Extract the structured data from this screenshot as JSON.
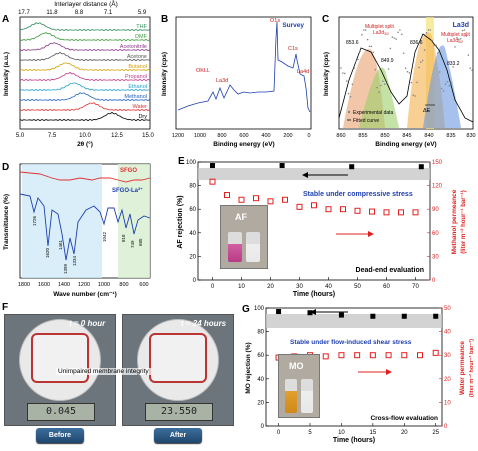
{
  "panels": {
    "a": {
      "label": "A",
      "top_axis_title": "Interlayer distance (Å)",
      "top_ticks": [
        "17.7",
        "11.8",
        "8.8",
        "7.1",
        "5.9"
      ],
      "bottom_ticks": [
        "5.0",
        "7.5",
        "10.0",
        "12.5",
        "15.0"
      ],
      "xlabel": "2θ (°)",
      "ylabel": "Intensity (a.u.)",
      "solvents": [
        {
          "name": "THF",
          "color": "#2e8b57"
        },
        {
          "name": "DMF",
          "color": "#3c9c3c"
        },
        {
          "name": "Acetonitrile",
          "color": "#8b3a8b"
        },
        {
          "name": "Acetone",
          "color": "#555555"
        },
        {
          "name": "Butanol",
          "color": "#d2a000"
        },
        {
          "name": "Propanol",
          "color": "#c0398b"
        },
        {
          "name": "Ethanol",
          "color": "#1fa0c8"
        },
        {
          "name": "Methanol",
          "color": "#2060c0"
        },
        {
          "name": "Water",
          "color": "#e03030"
        },
        {
          "name": "Dry",
          "color": "#000000"
        }
      ]
    },
    "b": {
      "label": "B",
      "legend": "Survey",
      "xlabel": "Binding energy (eV)",
      "ylabel": "Intensity (cps)",
      "xticks": [
        "1200",
        "1000",
        "800",
        "600",
        "400",
        "200",
        "0"
      ],
      "peaks": [
        {
          "name": "OKLL"
        },
        {
          "name": "La3d"
        },
        {
          "name": "O1s"
        },
        {
          "name": "C1s"
        },
        {
          "name": "La4d"
        }
      ]
    },
    "c": {
      "label": "C",
      "legend": "La3d",
      "xlabel": "Binding energy (eV)",
      "ylabel": "Intensity (cps)",
      "xticks": [
        "860",
        "855",
        "850",
        "845",
        "840",
        "835",
        "830"
      ],
      "annotations": {
        "p1": "853.6",
        "p2": "849.9",
        "p3": "836.6",
        "p4": "833.2",
        "ms1": "Multiplet split",
        "ms1b": "La3d",
        "ms1c": "3/2",
        "ms2": "Multiplet split",
        "ms2b": "La3d",
        "ms2c": "5/2",
        "delta": "ΔE",
        "leg1": "Experimental data",
        "leg2": "Fitted curve"
      }
    },
    "d": {
      "label": "D",
      "xlabel": "Wave number (cm⁻¹)",
      "ylabel": "Transmittance (%)",
      "xticks": [
        "1800",
        "1600",
        "1400",
        "1200",
        "1000",
        "800",
        "600"
      ],
      "legend1": "SFGO",
      "legend2": "SFGO-La",
      "legend2_sup": "3+",
      "peaks": [
        "1726",
        "1620",
        "1461",
        "1399",
        "1334",
        "1042",
        "818",
        "749",
        "685"
      ]
    },
    "e": {
      "label": "E",
      "ylabel_left": "AF rejection (%)",
      "ylabel_right1": "Methanol permeance",
      "ylabel_right2": "(liter m⁻² hour⁻¹ bar⁻¹)",
      "xlabel": "Time (hours)",
      "xticks": [
        "0",
        "10",
        "20",
        "30",
        "40",
        "50",
        "60",
        "70"
      ],
      "yticks_left": [
        "0",
        "20",
        "40",
        "60",
        "80",
        "100"
      ],
      "yticks_right": [
        "0",
        "30",
        "60",
        "90",
        "120",
        "150"
      ],
      "stable_text": "Stable under compressive stress",
      "mode": "Dead-end evaluation",
      "inset": "AF"
    },
    "f": {
      "label": "F",
      "t0": "t = 0 hour",
      "t1": "t = 24 hours",
      "caption": "Unimpaired membrane integrity",
      "lcd0": "0.045",
      "lcd1": "23.550",
      "before": "Before",
      "after": "After"
    },
    "g": {
      "label": "G",
      "ylabel_left": "MO rejection (%)",
      "ylabel_right1": "Water permeance",
      "ylabel_right2": "(liter m⁻² hour⁻¹ bar⁻¹)",
      "xlabel": "Time (hours)",
      "xticks": [
        "0",
        "5",
        "10",
        "15",
        "20",
        "25"
      ],
      "yticks_left": [
        "0",
        "20",
        "40",
        "60",
        "80",
        "100"
      ],
      "yticks_right": [
        "0",
        "10",
        "20",
        "30",
        "40",
        "50"
      ],
      "stable_text": "Stable under flow-induced shear stress",
      "mode": "Cross-flow evaluation",
      "inset": "MO"
    }
  },
  "chart_data": [
    {
      "type": "line",
      "panel": "E",
      "xlabel": "Time (hours)",
      "ylabel": "AF rejection (%)",
      "xlim": [
        -5,
        75
      ],
      "ylim": [
        0,
        100
      ],
      "series": [
        {
          "name": "AF rejection (%)",
          "x": [
            0,
            24,
            48,
            72
          ],
          "values": [
            97,
            97,
            96,
            96
          ],
          "color": "#000000"
        },
        {
          "name": "Methanol permeance",
          "x": [
            0,
            5,
            10,
            15,
            20,
            25,
            30,
            35,
            40,
            45,
            50,
            55,
            60,
            65,
            70
          ],
          "values": [
            125,
            108,
            102,
            104,
            100,
            102,
            93,
            95,
            90,
            90,
            88,
            87,
            86,
            86,
            86
          ],
          "color": "#e02020"
        }
      ],
      "y2lim": [
        0,
        150
      ]
    },
    {
      "type": "line",
      "panel": "G",
      "xlabel": "Time (hours)",
      "ylabel": "MO rejection (%)",
      "xlim": [
        -2,
        26
      ],
      "ylim": [
        0,
        100
      ],
      "series": [
        {
          "name": "MO rejection (%)",
          "x": [
            0,
            5,
            10,
            15,
            20,
            25
          ],
          "values": [
            97,
            96,
            94,
            93,
            93,
            93
          ],
          "color": "#000000"
        },
        {
          "name": "Water permeance",
          "x": [
            0,
            2.5,
            5,
            7.5,
            10,
            12.5,
            15,
            17.5,
            20,
            22.5,
            25
          ],
          "values": [
            29,
            29.5,
            30,
            29.5,
            30,
            30,
            30,
            30,
            30,
            30,
            31
          ],
          "color": "#e02020"
        }
      ],
      "y2lim": [
        0,
        50
      ]
    }
  ]
}
